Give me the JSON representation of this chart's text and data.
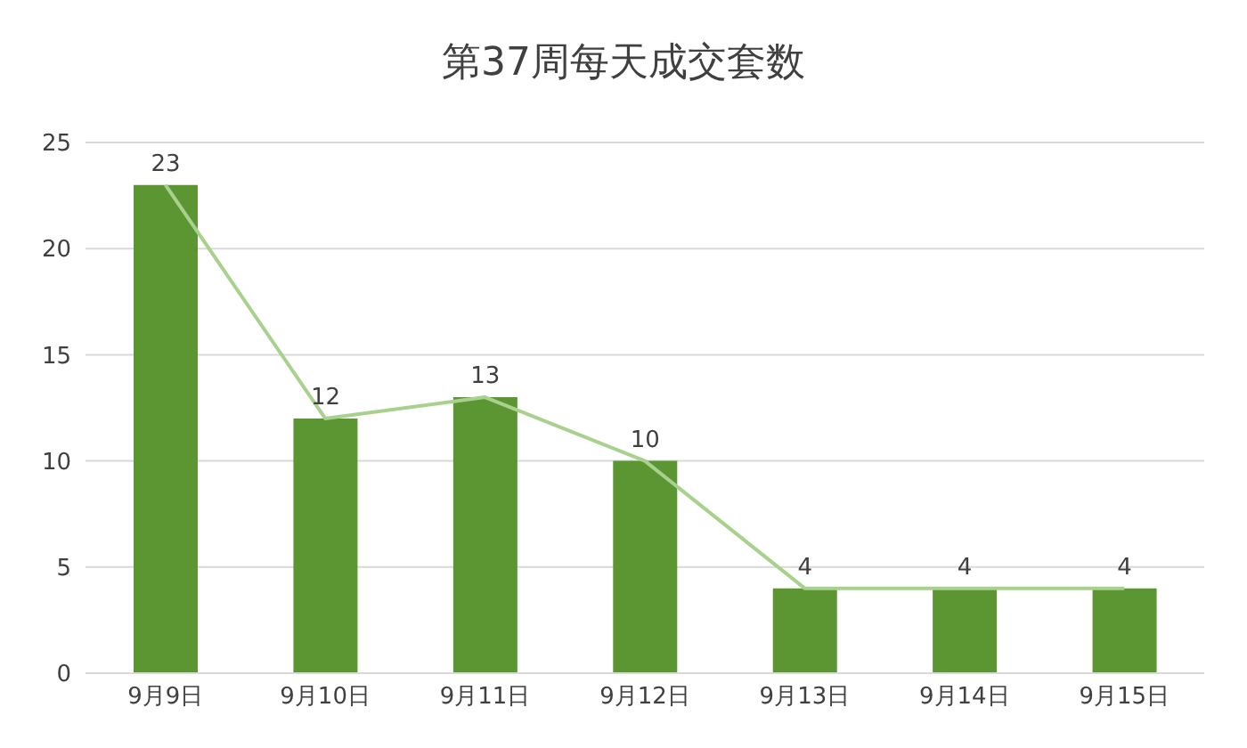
{
  "chart_data": {
    "type": "bar",
    "title": "第37周每天成交套数",
    "categories": [
      "9月9日",
      "9月10日",
      "9月11日",
      "9月12日",
      "9月13日",
      "9月14日",
      "9月15日"
    ],
    "series": [
      {
        "color": "#5b9632",
        "values": [
          23,
          12,
          13,
          10,
          4,
          4,
          4
        ],
        "value_labels": [
          "23",
          "12",
          "13",
          "10",
          "4",
          "4",
          "4"
        ]
      },
      {
        "type": "line",
        "color": "#a9d18e",
        "values": [
          23,
          12,
          13,
          10,
          4,
          4,
          4
        ]
      }
    ],
    "ylim": [
      0,
      25
    ],
    "yticks": [
      0,
      5,
      10,
      15,
      20,
      25
    ],
    "grid": "y",
    "marker": "none"
  }
}
